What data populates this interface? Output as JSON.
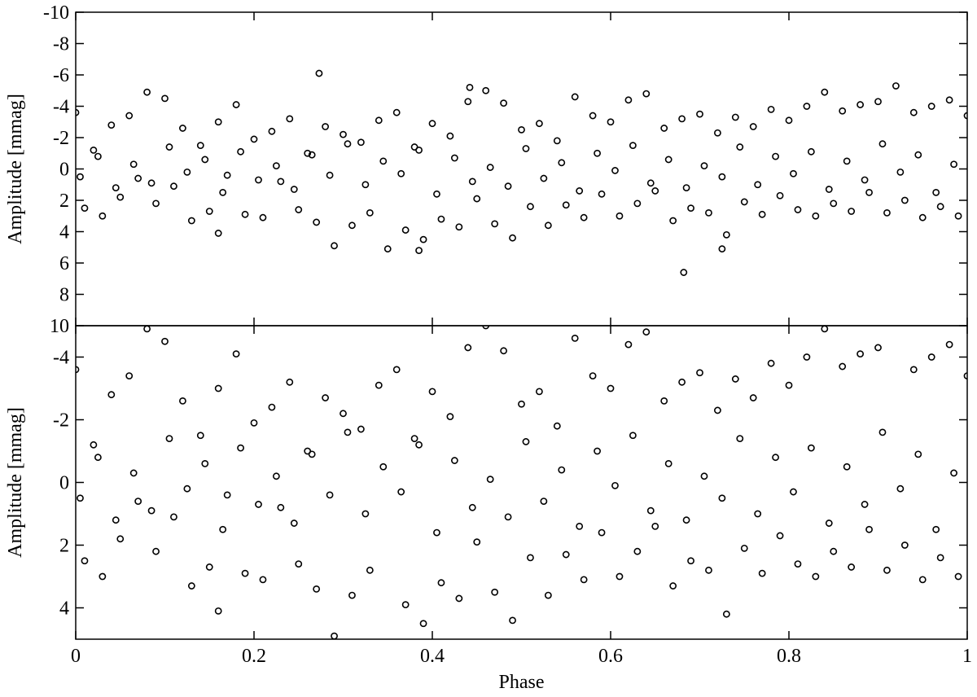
{
  "chart_data": [
    {
      "type": "scatter",
      "ylabel": "Amplitude [mmag]",
      "xlim": [
        0,
        1
      ],
      "ylim": [
        -10,
        10
      ],
      "y_inverted": true,
      "yticks": [
        -10,
        -8,
        -6,
        -4,
        -2,
        0,
        2,
        4,
        6,
        8,
        10
      ],
      "color": "#000000",
      "x": [
        0,
        0.01,
        0.02,
        0.03,
        0.04,
        0.05,
        0.06,
        0.07,
        0.08,
        0.09,
        0.1,
        0.11,
        0.12,
        0.13,
        0.14,
        0.15,
        0.16,
        0.17,
        0.18,
        0.19,
        0.2,
        0.21,
        0.22,
        0.23,
        0.24,
        0.25,
        0.26,
        0.27,
        0.28,
        0.29,
        0.3,
        0.31,
        0.32,
        0.33,
        0.34,
        0.35,
        0.36,
        0.37,
        0.38,
        0.39,
        0.4,
        0.41,
        0.42,
        0.43,
        0.44,
        0.45,
        0.46,
        0.47,
        0.48,
        0.49,
        0.5,
        0.51,
        0.52,
        0.53,
        0.54,
        0.55,
        0.56,
        0.57,
        0.58,
        0.59,
        0.6,
        0.61,
        0.62,
        0.63,
        0.64,
        0.65,
        0.66,
        0.67,
        0.68,
        0.69,
        0.7,
        0.71,
        0.72,
        0.73,
        0.74,
        0.75,
        0.76,
        0.77,
        0.78,
        0.79,
        0.8,
        0.81,
        0.82,
        0.83,
        0.84,
        0.85,
        0.86,
        0.87,
        0.88,
        0.89,
        0.9,
        0.91,
        0.92,
        0.93,
        0.94,
        0.95,
        0.96,
        0.97,
        0.98,
        0.99,
        1,
        0.005,
        0.025,
        0.045,
        0.065,
        0.085,
        0.105,
        0.125,
        0.145,
        0.165,
        0.185,
        0.205,
        0.225,
        0.245,
        0.265,
        0.285,
        0.305,
        0.325,
        0.345,
        0.365,
        0.385,
        0.405,
        0.425,
        0.445,
        0.465,
        0.485,
        0.505,
        0.525,
        0.545,
        0.565,
        0.585,
        0.605,
        0.625,
        0.645,
        0.665,
        0.685,
        0.705,
        0.725,
        0.745,
        0.765,
        0.785,
        0.805,
        0.825,
        0.845,
        0.865,
        0.885,
        0.905,
        0.925,
        0.945,
        0.965,
        0.985,
        0.273,
        0.682,
        0.442,
        0.385,
        0.725,
        0.16
      ],
      "y": [
        -3.6,
        2.5,
        -1.2,
        3.0,
        -2.8,
        1.8,
        -3.4,
        0.6,
        -4.9,
        2.2,
        -4.5,
        1.1,
        -2.6,
        3.3,
        -1.5,
        2.7,
        -3.0,
        0.4,
        -4.1,
        2.9,
        -1.9,
        3.1,
        -2.4,
        0.8,
        -3.2,
        2.6,
        -1.0,
        3.4,
        -2.7,
        4.9,
        -2.2,
        3.6,
        -1.7,
        2.8,
        -3.1,
        5.1,
        -3.6,
        3.9,
        -1.4,
        4.5,
        -2.9,
        3.2,
        -2.1,
        3.7,
        -4.3,
        1.9,
        -5.0,
        3.5,
        -4.2,
        4.4,
        -2.5,
        2.4,
        -2.9,
        3.6,
        -1.8,
        2.3,
        -4.6,
        3.1,
        -3.4,
        1.6,
        -3.0,
        3.0,
        -4.4,
        2.2,
        -4.8,
        1.4,
        -2.6,
        3.3,
        -3.2,
        2.5,
        -3.5,
        2.8,
        -2.3,
        4.2,
        -3.3,
        2.1,
        -2.7,
        2.9,
        -3.8,
        1.7,
        -3.1,
        2.6,
        -4.0,
        3.0,
        -4.9,
        2.2,
        -3.7,
        2.7,
        -4.1,
        1.5,
        -4.3,
        2.8,
        -5.3,
        2.0,
        -3.6,
        3.1,
        -4.0,
        2.4,
        -4.4,
        3.0,
        -3.4,
        0.5,
        -0.8,
        1.2,
        -0.3,
        0.9,
        -1.4,
        0.2,
        -0.6,
        1.5,
        -1.1,
        0.7,
        -0.2,
        1.3,
        -0.9,
        0.4,
        -1.6,
        1.0,
        -0.5,
        0.3,
        -1.2,
        1.6,
        -0.7,
        0.8,
        -0.1,
        1.1,
        -1.3,
        0.6,
        -0.4,
        1.4,
        -1.0,
        0.1,
        -1.5,
        0.9,
        -0.6,
        1.2,
        -0.2,
        0.5,
        -1.4,
        1.0,
        -0.8,
        0.3,
        -1.1,
        1.3,
        -0.5,
        0.7,
        -1.6,
        0.2,
        -0.9,
        1.5,
        -0.3,
        -6.1,
        6.6,
        -5.2,
        5.2,
        5.1,
        4.1
      ]
    },
    {
      "type": "scatter",
      "ylabel": "Amplitude [mmag]",
      "xlabel": "Phase",
      "xlim": [
        0,
        1
      ],
      "ylim": [
        -5,
        5
      ],
      "y_inverted": true,
      "yticks": [
        -4,
        -2,
        0,
        2,
        4
      ],
      "xticks": [
        0,
        0.2,
        0.4,
        0.6,
        0.8,
        1
      ],
      "points_from": 0
    }
  ]
}
